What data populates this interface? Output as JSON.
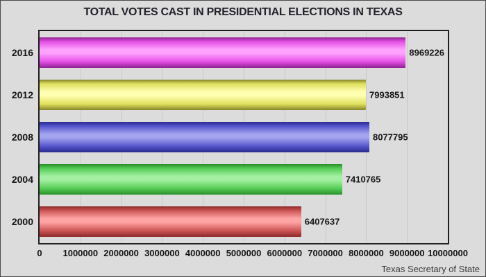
{
  "chart_data": {
    "type": "bar",
    "orientation": "horizontal",
    "title": "TOTAL VOTES CAST IN PRESIDENTIAL ELECTIONS IN TEXAS",
    "categories": [
      "2016",
      "2012",
      "2008",
      "2004",
      "2000"
    ],
    "values": [
      8969226,
      7993851,
      8077795,
      7410765,
      6407637
    ],
    "xlabel": "",
    "ylabel": "",
    "xlim": [
      0,
      10000000
    ],
    "x_ticks": [
      "0",
      "1000000",
      "2000000",
      "3000000",
      "4000000",
      "5000000",
      "6000000",
      "7000000",
      "8000000",
      "9000000",
      "10000000"
    ],
    "grid": "vertical",
    "legend": "none",
    "source": "Texas Secretary of State",
    "background_color": "#dcdcdc",
    "gridline_color": "#c7c7c7",
    "plot_border_color": "#1f1f1f",
    "bar_styles": [
      {
        "name": "magenta",
        "dark": "#8e2390",
        "base": "#e44fe6",
        "light": "#ffa3ff"
      },
      {
        "name": "yellow",
        "dark": "#85852a",
        "base": "#e0e05e",
        "light": "#ffffb2"
      },
      {
        "name": "blue",
        "dark": "#2a2a8e",
        "base": "#5555cc",
        "light": "#a3a3f0"
      },
      {
        "name": "green",
        "dark": "#2a8e2a",
        "base": "#55cc55",
        "light": "#a3f0a3"
      },
      {
        "name": "red",
        "dark": "#8e2a2a",
        "base": "#cc5555",
        "light": "#ffa3a3"
      }
    ]
  }
}
